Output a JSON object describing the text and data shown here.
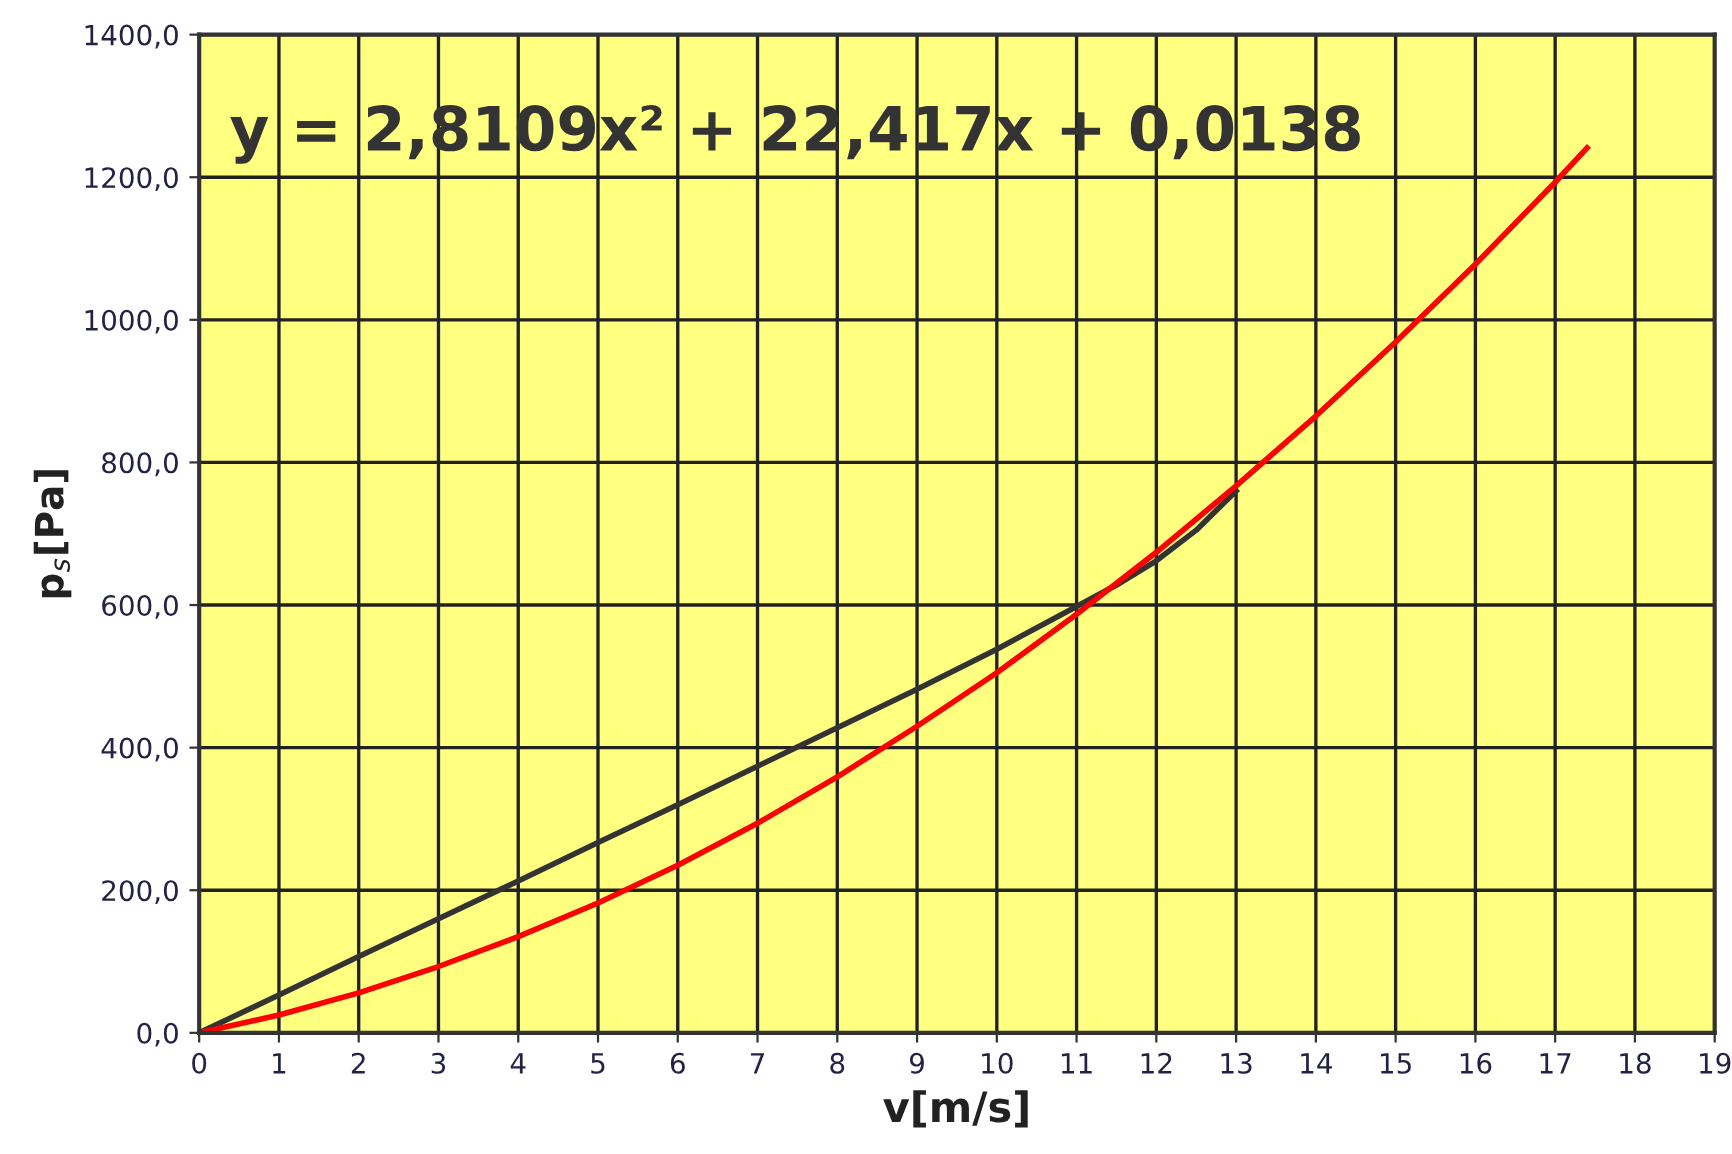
{
  "chart_data": {
    "type": "line",
    "xlabel": "v[m/s]",
    "ylabel": "p$_{s}$[Pa]",
    "annotations": [
      "y = 2,8109x² + 22,417x + 0,0138"
    ],
    "series": [
      {
        "color": "#333333",
        "x": [
          0,
          1,
          2,
          3,
          4,
          5,
          6,
          7,
          8,
          9,
          10,
          11,
          11.5,
          12,
          12.5,
          13
        ],
        "values": [
          0,
          53,
          107,
          160,
          213,
          267,
          320,
          374,
          428,
          482,
          538,
          598,
          628,
          662,
          705,
          760
        ]
      },
      {
        "color": "#ff0000",
        "x": [
          0,
          1,
          2,
          3,
          4,
          5,
          6,
          7,
          8,
          9,
          10,
          11,
          12,
          13,
          14,
          15,
          16,
          17,
          17.4
        ],
        "values": [
          0,
          25,
          56,
          93,
          135,
          182,
          235,
          294,
          359,
          430,
          505,
          587,
          674,
          767,
          865,
          969,
          1078,
          1193,
          1241
        ]
      }
    ],
    "xlim": [
      0,
      19
    ],
    "xticks": [
      0,
      1,
      2,
      3,
      4,
      5,
      6,
      7,
      8,
      9,
      10,
      11,
      12,
      13,
      14,
      15,
      16,
      17,
      18,
      19
    ],
    "ylim": [
      0,
      1400
    ],
    "yticks": [
      {
        "value": 0,
        "label": "0,0"
      },
      {
        "value": 200,
        "label": "200,0"
      },
      {
        "value": 400,
        "label": "400,0"
      },
      {
        "value": 600,
        "label": "600,0"
      },
      {
        "value": 800,
        "label": "800,0"
      },
      {
        "value": 1000,
        "label": "1000,0"
      },
      {
        "value": 1200,
        "label": "1200,0"
      },
      {
        "value": 1400,
        "label": "1400,0"
      }
    ],
    "grid": true,
    "legend": false,
    "marker": "none",
    "line_style": "solid"
  }
}
